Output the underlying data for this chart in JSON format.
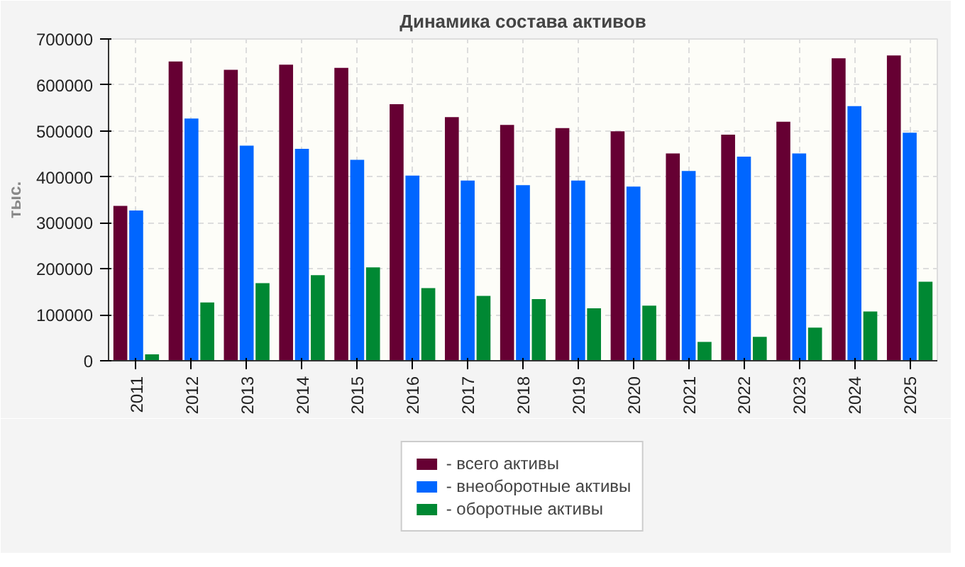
{
  "chart_data": {
    "type": "bar",
    "title": "Динамика состава активов",
    "ylabel": "тыс.",
    "categories": [
      "2011",
      "2012",
      "2013",
      "2014",
      "2015",
      "2016",
      "2017",
      "2018",
      "2019",
      "2020",
      "2021",
      "2022",
      "2023",
      "2024",
      "2025"
    ],
    "series": [
      {
        "name": "- всего активы",
        "color": "#660033",
        "values": [
          337000,
          651000,
          633000,
          644000,
          637000,
          558000,
          530000,
          513000,
          506000,
          499000,
          451000,
          492000,
          520000,
          658000,
          664000
        ]
      },
      {
        "name": "- внеоборотные активы",
        "color": "#0066ff",
        "values": [
          327000,
          527000,
          468000,
          461000,
          437000,
          403000,
          392000,
          382000,
          392000,
          379000,
          413000,
          444000,
          451000,
          554000,
          496000
        ]
      },
      {
        "name": "- оборотные активы",
        "color": "#008833",
        "values": [
          14000,
          127000,
          169000,
          186000,
          203000,
          158000,
          141000,
          134000,
          114000,
          120000,
          41000,
          52000,
          72000,
          107000,
          172000
        ]
      }
    ],
    "ylim": [
      0,
      700000
    ],
    "yticks": [
      0,
      100000,
      200000,
      300000,
      400000,
      500000,
      600000,
      700000
    ],
    "grid": true,
    "legend": "bottom"
  }
}
